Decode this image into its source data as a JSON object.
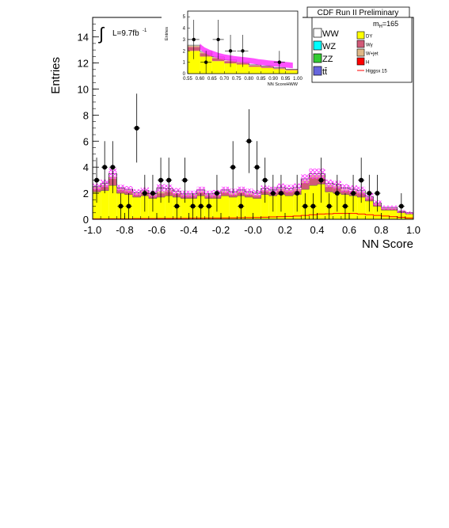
{
  "chart_data": [
    {
      "type": "bar",
      "title": "CDF Run II Preliminary",
      "luminosity_label": "L=9.7fb",
      "luminosity_exponent": "-1",
      "mass_label": "m",
      "mass_subscript": "H",
      "mass_value": "=165",
      "xlabel": "NN Score",
      "ylabel": "Entries",
      "xlim": [
        -1.0,
        1.0
      ],
      "ylim": [
        0,
        15.5
      ],
      "grid": false,
      "legend_position": "top-right",
      "x_ticks": [
        "-1.0",
        "-0.8",
        "-0.6",
        "-0.4",
        "-0.2",
        "-0.0",
        "0.2",
        "0.4",
        "0.6",
        "0.8",
        "1.0"
      ],
      "y_ticks": [
        "0",
        "2",
        "4",
        "6",
        "8",
        "10",
        "12",
        "14"
      ],
      "bin_edges": [
        -1.0,
        -0.95,
        -0.9,
        -0.85,
        -0.8,
        -0.75,
        -0.7,
        -0.65,
        -0.6,
        -0.55,
        -0.5,
        -0.45,
        -0.4,
        -0.35,
        -0.3,
        -0.25,
        -0.2,
        -0.15,
        -0.1,
        -0.05,
        0.0,
        0.05,
        0.1,
        0.15,
        0.2,
        0.25,
        0.3,
        0.35,
        0.4,
        0.45,
        0.5,
        0.55,
        0.6,
        0.65,
        0.7,
        0.75,
        0.8,
        0.85,
        0.9,
        0.95,
        1.0
      ],
      "colors": {
        "dy": "#ffff00",
        "wgamma": "#d05a78",
        "wjet": "#deb887",
        "ww": "#ffffff",
        "higgs": "#ff0000",
        "band": "#ff33ff",
        "data": "#000000"
      },
      "series": [
        {
          "name": "DY",
          "values": [
            2.1,
            2.2,
            2.6,
            2.0,
            1.9,
            1.7,
            1.8,
            1.6,
            1.7,
            1.8,
            1.7,
            1.6,
            1.6,
            1.8,
            1.6,
            1.6,
            1.8,
            1.7,
            1.8,
            1.7,
            1.6,
            1.9,
            1.8,
            1.9,
            1.8,
            1.9,
            2.3,
            2.6,
            2.7,
            2.1,
            2.0,
            1.9,
            1.8,
            1.7,
            1.4,
            1.0,
            0.7,
            0.7,
            0.5,
            0.4
          ]
        },
        {
          "name": "Wγ",
          "values": [
            0.25,
            0.3,
            0.5,
            0.25,
            0.25,
            0.2,
            0.25,
            0.2,
            0.3,
            0.3,
            0.25,
            0.2,
            0.2,
            0.25,
            0.2,
            0.2,
            0.25,
            0.2,
            0.25,
            0.2,
            0.2,
            0.25,
            0.25,
            0.3,
            0.3,
            0.3,
            0.5,
            0.6,
            0.5,
            0.4,
            0.4,
            0.3,
            0.3,
            0.3,
            0.2,
            0.15,
            0.1,
            0.1,
            0.05,
            0.05
          ]
        },
        {
          "name": "W+jet",
          "values": [
            0.1,
            0.15,
            0.2,
            0.1,
            0.1,
            0.1,
            0.1,
            0.1,
            0.15,
            0.15,
            0.1,
            0.1,
            0.1,
            0.1,
            0.1,
            0.1,
            0.1,
            0.1,
            0.1,
            0.1,
            0.1,
            0.1,
            0.1,
            0.15,
            0.15,
            0.15,
            0.2,
            0.2,
            0.2,
            0.15,
            0.15,
            0.1,
            0.1,
            0.1,
            0.1,
            0.05,
            0.05,
            0.05,
            0.03,
            0.03
          ]
        },
        {
          "name": "WW",
          "values": [
            0.05,
            0.1,
            0.2,
            0.05,
            0.05,
            0.05,
            0.05,
            0.05,
            0.25,
            0.1,
            0.1,
            0.05,
            0.05,
            0.1,
            0.05,
            0.1,
            0.1,
            0.1,
            0.1,
            0.1,
            0.1,
            0.1,
            0.1,
            0.1,
            0.1,
            0.1,
            0.1,
            0.1,
            0.1,
            0.1,
            0.1,
            0.1,
            0.1,
            0.1,
            0.05,
            0.05,
            0.05,
            0.05,
            0.02,
            0.02
          ]
        },
        {
          "name": "Higgsx 15",
          "values": [
            0.03,
            0.03,
            0.04,
            0.04,
            0.04,
            0.05,
            0.05,
            0.05,
            0.06,
            0.06,
            0.07,
            0.07,
            0.08,
            0.08,
            0.09,
            0.09,
            0.1,
            0.11,
            0.12,
            0.13,
            0.14,
            0.16,
            0.18,
            0.2,
            0.22,
            0.25,
            0.3,
            0.35,
            0.4,
            0.42,
            0.45,
            0.45,
            0.45,
            0.4,
            0.35,
            0.3,
            0.25,
            0.2,
            0.15,
            0.1
          ]
        }
      ],
      "band_halfwidth": [
        0.25,
        0.3,
        0.4,
        0.25,
        0.25,
        0.25,
        0.25,
        0.25,
        0.3,
        0.3,
        0.25,
        0.25,
        0.25,
        0.25,
        0.25,
        0.25,
        0.25,
        0.25,
        0.25,
        0.25,
        0.25,
        0.25,
        0.25,
        0.3,
        0.3,
        0.3,
        0.35,
        0.4,
        0.4,
        0.3,
        0.3,
        0.3,
        0.3,
        0.3,
        0.25,
        0.2,
        0.15,
        0.15,
        0.1,
        0.1
      ],
      "data_points": [
        {
          "x": -0.975,
          "y": 3
        },
        {
          "x": -0.925,
          "y": 4
        },
        {
          "x": -0.875,
          "y": 4
        },
        {
          "x": -0.825,
          "y": 1
        },
        {
          "x": -0.775,
          "y": 1
        },
        {
          "x": -0.725,
          "y": 7
        },
        {
          "x": -0.675,
          "y": 2
        },
        {
          "x": -0.625,
          "y": 2
        },
        {
          "x": -0.575,
          "y": 3
        },
        {
          "x": -0.525,
          "y": 3
        },
        {
          "x": -0.475,
          "y": 1
        },
        {
          "x": -0.425,
          "y": 3
        },
        {
          "x": -0.375,
          "y": 1
        },
        {
          "x": -0.325,
          "y": 1
        },
        {
          "x": -0.275,
          "y": 1
        },
        {
          "x": -0.225,
          "y": 2
        },
        {
          "x": -0.125,
          "y": 4
        },
        {
          "x": -0.075,
          "y": 1
        },
        {
          "x": -0.025,
          "y": 6
        },
        {
          "x": 0.025,
          "y": 4
        },
        {
          "x": 0.075,
          "y": 3
        },
        {
          "x": 0.125,
          "y": 2
        },
        {
          "x": 0.175,
          "y": 2
        },
        {
          "x": 0.275,
          "y": 2
        },
        {
          "x": 0.325,
          "y": 1
        },
        {
          "x": 0.375,
          "y": 1
        },
        {
          "x": 0.425,
          "y": 3
        },
        {
          "x": 0.475,
          "y": 1
        },
        {
          "x": 0.525,
          "y": 2
        },
        {
          "x": 0.575,
          "y": 1
        },
        {
          "x": 0.625,
          "y": 2
        },
        {
          "x": 0.675,
          "y": 3
        },
        {
          "x": 0.725,
          "y": 2
        },
        {
          "x": 0.775,
          "y": 2
        },
        {
          "x": 0.925,
          "y": 1
        }
      ],
      "legend_left": [
        {
          "label": "WW",
          "color": "#ffffff"
        },
        {
          "label": "WZ",
          "color": "#00ffff"
        },
        {
          "label": "ZZ",
          "color": "#33cc33"
        },
        {
          "label": "tt̄",
          "color": "#6666dd"
        }
      ],
      "legend_right": [
        {
          "label": "DY",
          "color": "#ffff00",
          "kind": "box"
        },
        {
          "label": "Wγ",
          "color": "#d05a78",
          "kind": "box"
        },
        {
          "label": "W+jet",
          "color": "#deb887",
          "kind": "box"
        },
        {
          "label": "H",
          "color": "#ff0000",
          "kind": "box"
        },
        {
          "label": "Higgsx 15",
          "color": "#ff0000",
          "kind": "line"
        }
      ]
    },
    {
      "type": "bar",
      "title": "",
      "xlabel": "NN ScoreHWW",
      "ylabel": "Entries",
      "xlim": [
        0.55,
        1.0
      ],
      "ylim": [
        0,
        5.5
      ],
      "x_ticks": [
        "0.55",
        "0.60",
        "0.65",
        "0.70",
        "0.75",
        "0.80",
        "0.85",
        "0.90",
        "0.95",
        "1.00"
      ],
      "y_ticks": [
        "0",
        "1",
        "2",
        "3",
        "4",
        "5"
      ],
      "bin_edges": [
        0.55,
        0.6,
        0.65,
        0.7,
        0.75,
        0.8,
        0.85,
        0.9,
        0.95,
        1.0
      ],
      "series": [
        {
          "name": "DY",
          "values": [
            2.0,
            1.5,
            1.1,
            0.9,
            0.8,
            0.6,
            0.5,
            0.4,
            0.3
          ]
        },
        {
          "name": "Wγ",
          "values": [
            0.35,
            0.3,
            0.25,
            0.2,
            0.15,
            0.1,
            0.1,
            0.07,
            0.05
          ]
        },
        {
          "name": "W+jet",
          "values": [
            0.1,
            0.1,
            0.08,
            0.06,
            0.05,
            0.04,
            0.03,
            0.02,
            0.02
          ]
        },
        {
          "name": "WW",
          "values": [
            0.05,
            0.05,
            0.04,
            0.04,
            0.03,
            0.03,
            0.02,
            0.02,
            0.01
          ]
        }
      ],
      "band_curve": {
        "x": [
          0.6,
          0.61,
          0.62,
          0.63,
          0.64,
          0.65,
          0.66,
          0.67,
          0.68,
          0.69,
          0.7,
          0.72,
          0.74,
          0.76,
          0.78,
          0.8,
          0.82,
          0.84,
          0.86,
          0.88,
          0.9,
          0.92,
          0.94,
          0.96,
          0.98
        ],
        "y": [
          2.4,
          2.2,
          2.05,
          1.95,
          1.85,
          1.78,
          1.7,
          1.62,
          1.55,
          1.5,
          1.45,
          1.38,
          1.3,
          1.25,
          1.2,
          1.15,
          1.1,
          1.02,
          0.98,
          0.92,
          0.88,
          0.85,
          0.8,
          0.76,
          0.72
        ],
        "halfwidth": 0.25
      },
      "data_points": [
        {
          "x": 0.575,
          "y": 3
        },
        {
          "x": 0.625,
          "y": 1
        },
        {
          "x": 0.675,
          "y": 3
        },
        {
          "x": 0.725,
          "y": 2
        },
        {
          "x": 0.775,
          "y": 2
        },
        {
          "x": 0.925,
          "y": 1
        }
      ]
    }
  ]
}
